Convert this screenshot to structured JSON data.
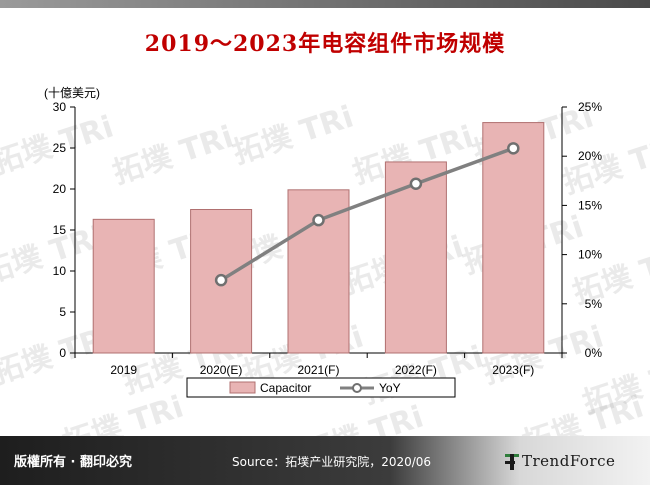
{
  "title": "2019～2023年电容组件市场规模",
  "footer": {
    "rights": "版權所有 · 翻印必究",
    "source": "Source：拓墣产业研究院，2020/06",
    "brand": "TrendForce"
  },
  "watermark_text": "拓墣 TRi",
  "colors": {
    "title": "#c00000",
    "bar_fill": "#e8b4b4",
    "bar_stroke": "#b07070",
    "line": "#808080",
    "marker_fill": "#ffffff",
    "marker_stroke": "#707070"
  },
  "chart_data": {
    "type": "bar",
    "title": "2019～2023年电容组件市场规模",
    "unit_label": "(十億美元)",
    "categories": [
      "2019",
      "2020(E)",
      "2021(F)",
      "2022(F)",
      "2023(F)"
    ],
    "series": [
      {
        "name": "Capacitor",
        "type": "bar",
        "axis": "left",
        "values": [
          16.3,
          17.5,
          19.9,
          23.3,
          28.1
        ]
      },
      {
        "name": "YoY",
        "type": "line",
        "axis": "right",
        "values": [
          null,
          7.4,
          13.5,
          17.2,
          20.8
        ]
      }
    ],
    "y_left": {
      "min": 0,
      "max": 30,
      "ticks": [
        "0",
        "5",
        "10",
        "15",
        "20",
        "25",
        "30"
      ]
    },
    "y_right": {
      "min": 0,
      "max": 25,
      "ticks": [
        "0%",
        "5%",
        "10%",
        "15%",
        "20%",
        "25%"
      ]
    },
    "legend_position": "bottom",
    "grid": false
  }
}
